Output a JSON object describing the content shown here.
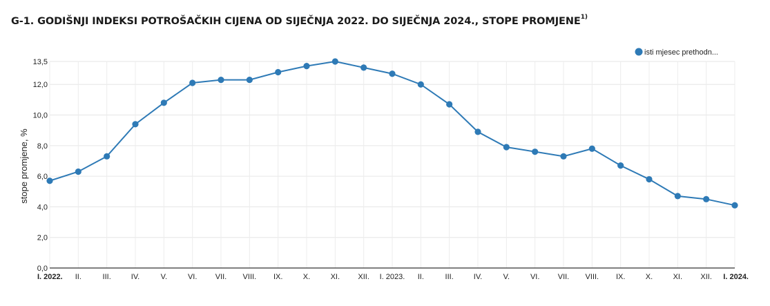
{
  "title": "G-1. GODIŠNJI INDEKSI POTROŠAČKIH CIJENA OD SIJEČNJA 2022. DO SIJEČNJA 2024., STOPE PROMJENE",
  "title_footnote": "1)",
  "chart_data": {
    "type": "line",
    "categories": [
      "I. 2022.",
      "II.",
      "III.",
      "IV.",
      "V.",
      "VI.",
      "VII.",
      "VIII.",
      "IX.",
      "X.",
      "XI.",
      "XII.",
      "I. 2023.",
      "II.",
      "III.",
      "IV.",
      "V.",
      "VI.",
      "VII.",
      "VIII.",
      "IX.",
      "X.",
      "XI.",
      "XII.",
      "I. 2024."
    ],
    "bold_categories": [
      0,
      24
    ],
    "series": [
      {
        "name": "isti mjesec prethodn...",
        "color": "#2e7ab6",
        "values": [
          5.7,
          6.3,
          7.3,
          9.4,
          10.8,
          12.1,
          12.3,
          12.3,
          12.8,
          13.2,
          13.5,
          13.1,
          12.7,
          12.0,
          10.7,
          8.9,
          7.9,
          7.6,
          7.3,
          7.8,
          6.7,
          5.8,
          4.7,
          4.5,
          4.1
        ]
      }
    ],
    "ylabel": "stope promjene, %",
    "ylim": [
      0,
      13.5
    ],
    "yticks": [
      0,
      2,
      4,
      6,
      8,
      10,
      12,
      13.5
    ],
    "ytick_labels": [
      "0,0",
      "2,0",
      "4,0",
      "6,0",
      "8,0",
      "10,0",
      "12,0",
      "13,5"
    ],
    "grid": true,
    "legend_position": "top-right"
  }
}
